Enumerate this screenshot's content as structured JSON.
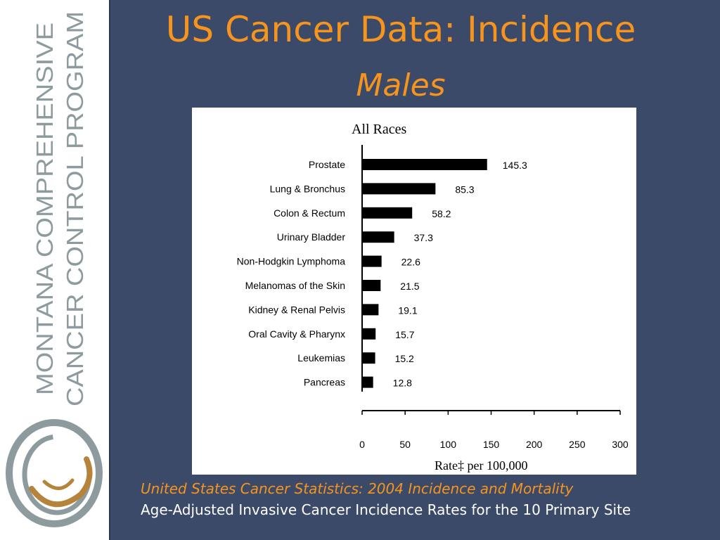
{
  "slide": {
    "title": "US Cancer Data: Incidence",
    "subtitle": "Males",
    "caption_source": "United States Cancer Statistics: 2004 Incidence and Mortality",
    "caption_desc": "Age-Adjusted Invasive Cancer Incidence Rates for the 10 Primary Site"
  },
  "sidebar": {
    "logo_line1": "MONTANA COMPREHENSIVE",
    "logo_line2": "CANCER CONTROL PROGRAM"
  },
  "colors": {
    "background": "#3b4a68",
    "title": "#f7941d",
    "logo_text": "#8e9b9e",
    "logo_swirl": "#b5843a"
  },
  "chart_data": {
    "type": "bar",
    "orientation": "horizontal",
    "title": "All Races",
    "xlabel": "Rate‡ per 100,000",
    "categories": [
      "Prostate",
      "Lung & Bronchus",
      "Colon & Rectum",
      "Urinary Bladder",
      "Non-Hodgkin Lymphoma",
      "Melanomas of the Skin",
      "Kidney & Renal Pelvis",
      "Oral Cavity & Pharynx",
      "Leukemias",
      "Pancreas"
    ],
    "values": [
      145.3,
      85.3,
      58.2,
      37.3,
      22.6,
      21.5,
      19.1,
      15.7,
      15.2,
      12.8
    ],
    "value_labels": [
      "145.3",
      "85.3",
      "58.2",
      "37.3",
      "22.6",
      "21.5",
      "19.1",
      "15.7",
      "15.2",
      "12.8"
    ],
    "xlim": [
      0,
      300
    ],
    "xticks": [
      0,
      50,
      100,
      150,
      200,
      250,
      300
    ],
    "xtick_labels": [
      "0",
      "50",
      "100",
      "150",
      "200",
      "250",
      "300"
    ],
    "grid": false,
    "legend": "none"
  }
}
